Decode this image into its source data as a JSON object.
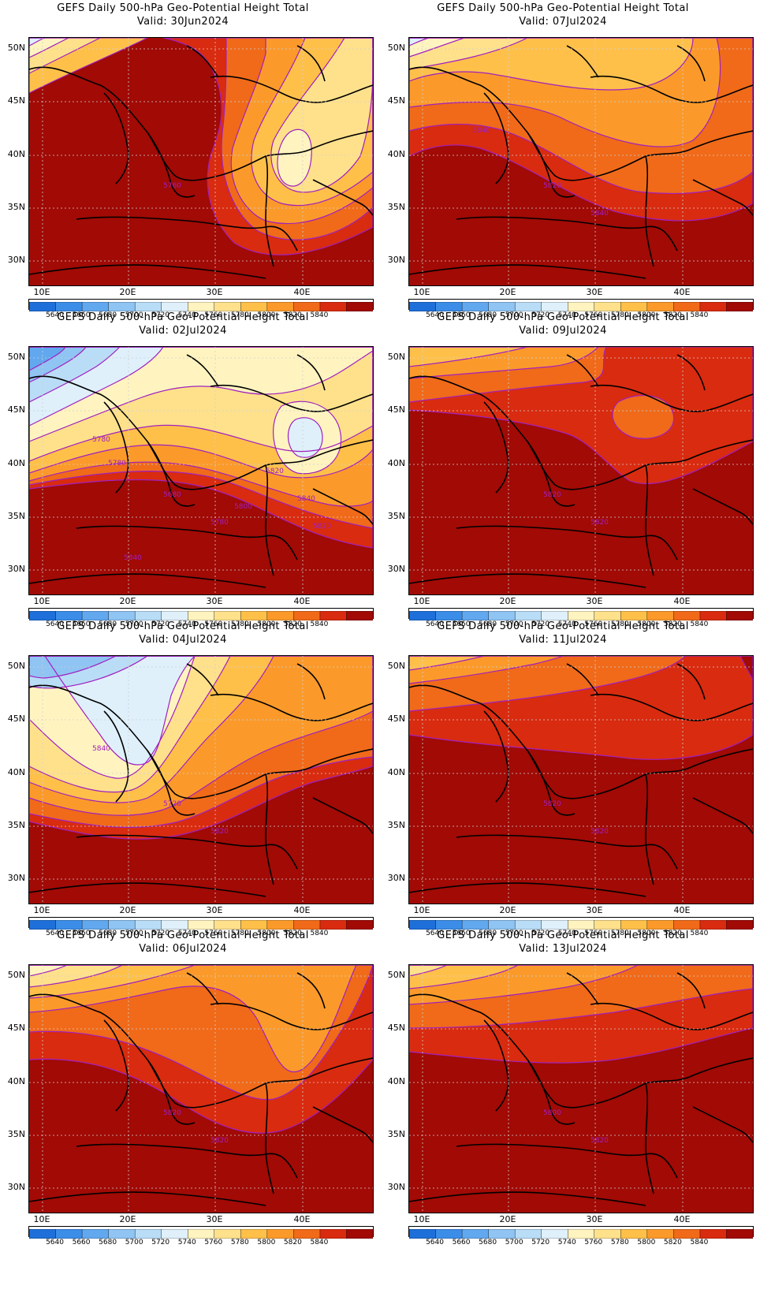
{
  "title": "GEFS Daily 500-hPa Geo-Potential Height Total",
  "valid_prefix": "Valid:",
  "lat_labels": [
    "50N",
    "45N",
    "40N",
    "35N",
    "30N"
  ],
  "lon_labels": [
    "10E",
    "20E",
    "30E",
    "40E"
  ],
  "colorbar_labels": [
    "5640",
    "5660",
    "5680",
    "5700",
    "5720",
    "5740",
    "5760",
    "5780",
    "5800",
    "5820",
    "5840"
  ],
  "colorbar_colors": [
    "#1e6fd9",
    "#3b8de8",
    "#61a8ef",
    "#8fc4f3",
    "#b9ddf7",
    "#dff0fb",
    "#fff4c0",
    "#ffe18c",
    "#ffc04a",
    "#fb9a2a",
    "#f06a19",
    "#d92b0f",
    "#a10a05"
  ],
  "contour_color": "#a020c0",
  "panels": [
    {
      "valid": "30Jun2024",
      "labels": [
        "5760"
      ]
    },
    {
      "valid": "07Jul2024",
      "labels": [
        "5820",
        "5840",
        "5840"
      ]
    },
    {
      "valid": "02Jul2024",
      "labels": [
        "5680",
        "5780",
        "5780",
        "5780",
        "5800",
        "5820",
        "5840",
        "5820",
        "5840"
      ]
    },
    {
      "valid": "09Jul2024",
      "labels": [
        "5820",
        "5820"
      ]
    },
    {
      "valid": "04Jul2024",
      "labels": [
        "5720",
        "5820",
        "5840"
      ]
    },
    {
      "valid": "11Jul2024",
      "labels": [
        "5820",
        "5820"
      ]
    },
    {
      "valid": "06Jul2024",
      "labels": [
        "5820",
        "5820"
      ]
    },
    {
      "valid": "13Jul2024",
      "labels": [
        "5800",
        "5820"
      ]
    }
  ]
}
